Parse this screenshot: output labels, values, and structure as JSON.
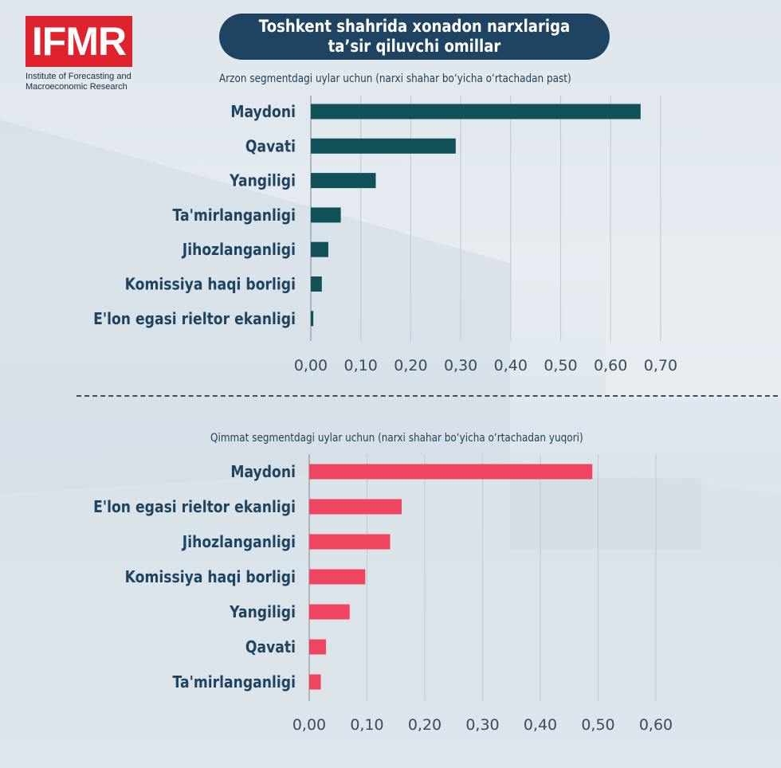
{
  "logo": {
    "text": "IFMR",
    "subtitle_line1": "Institute of Forecasting and",
    "subtitle_line2": "Macroeconomic Research"
  },
  "title": {
    "line1": "Toshkent shahrida xonadon narxlariga",
    "line2": "ta’sir qiluvchi omillar"
  },
  "chart_data": [
    {
      "type": "bar",
      "orientation": "horizontal",
      "title": "Arzon segmentdagi uylar uchun (narxi shahar bo‘yicha o‘rtachadan past)",
      "categories": [
        "Maydoni",
        "Qavati",
        "Yangiligi",
        "Ta'mirlanganligi",
        "Jihozlanganligi",
        "Komissiya haqi borligi",
        "E'lon egasi rieltor ekanligi"
      ],
      "values": [
        0.66,
        0.29,
        0.13,
        0.06,
        0.035,
        0.022,
        0.005
      ],
      "xlim": [
        0,
        0.7
      ],
      "ticks": [
        "0,00",
        "0,10",
        "0,20",
        "0,30",
        "0,40",
        "0,50",
        "0,60",
        "0,70"
      ],
      "tick_values": [
        0,
        0.1,
        0.2,
        0.3,
        0.4,
        0.5,
        0.6,
        0.7
      ],
      "color": "#0f5059",
      "grid": true
    },
    {
      "type": "bar",
      "orientation": "horizontal",
      "title": "Qimmat segmentdagi uylar uchun (narxi shahar bo‘yicha o‘rtachadan yuqori)",
      "categories": [
        "Maydoni",
        "E'lon egasi rieltor ekanligi",
        "Jihozlanganligi",
        "Komissiya haqi borligi",
        "Yangiligi",
        "Qavati",
        "Ta'mirlanganligi"
      ],
      "values": [
        0.49,
        0.16,
        0.14,
        0.097,
        0.07,
        0.029,
        0.02
      ],
      "xlim": [
        0,
        0.6
      ],
      "ticks": [
        "0,00",
        "0,10",
        "0,20",
        "0,30",
        "0,40",
        "0,50",
        "0,60"
      ],
      "tick_values": [
        0,
        0.1,
        0.2,
        0.3,
        0.4,
        0.5,
        0.6
      ],
      "color": "#f0455f",
      "grid": true
    }
  ]
}
